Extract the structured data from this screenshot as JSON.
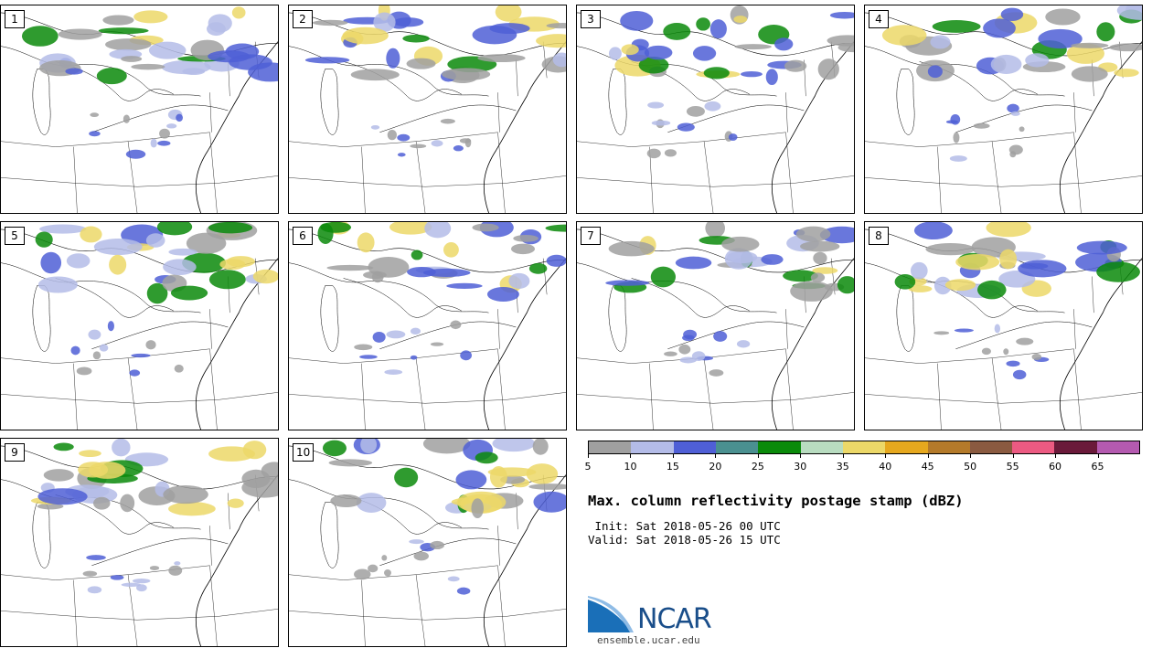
{
  "panels": [
    {
      "label": "1"
    },
    {
      "label": "2"
    },
    {
      "label": "3"
    },
    {
      "label": "4"
    },
    {
      "label": "5"
    },
    {
      "label": "6"
    },
    {
      "label": "7"
    },
    {
      "label": "8"
    },
    {
      "label": "9"
    },
    {
      "label": "10"
    }
  ],
  "colorbar": {
    "colors": [
      "#a0a0a0",
      "#b4bce8",
      "#4f5fd6",
      "#4a9090",
      "#0a8a0a",
      "#b8dcc0",
      "#ecd868",
      "#e6a81e",
      "#b47a2a",
      "#8a5a40",
      "#ec5a82",
      "#6a1a3a",
      "#b45ab0"
    ],
    "ticks": [
      "5",
      "10",
      "15",
      "20",
      "25",
      "30",
      "35",
      "40",
      "45",
      "50",
      "55",
      "60",
      "65"
    ]
  },
  "title": "Max. column reflectivity postage stamp (dBZ)",
  "init_line": " Init: Sat 2018-05-26 00 UTC",
  "valid_line": "Valid: Sat 2018-05-26 15 UTC",
  "logo": {
    "name": "NCAR",
    "url": "ensemble.ucar.edu"
  }
}
